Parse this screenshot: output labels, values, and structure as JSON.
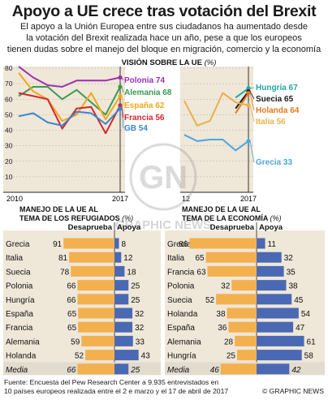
{
  "header": {
    "title": "Apoyo a UE crece tras votación del Brexit",
    "subtitle_lines": [
      "El apoyo a la Unión Europea entre sus ciudadanos ha aumentado desde",
      "la votación del Brexit realizada hace un año, pese a que los europeos",
      "tienen dudas sobre el manejo del bloque en migración, comercio y la economía"
    ]
  },
  "colors": {
    "background": "#ffffff",
    "panel": "#efe7d8",
    "polonia": "#9b30b0",
    "alemania": "#3a9a52",
    "espana": "#f2a61c",
    "francia": "#d1282f",
    "gb": "#3a86d0",
    "hungria": "#1fa8a6",
    "suecia": "#1a1a1a",
    "holanda": "#e07a1e",
    "italia": "#e6b24f",
    "grecia": "#4aa7e0",
    "disapprove_bar": "#f3b04f",
    "approve_bar": "#4a69b4",
    "media_row": "#e2dccf"
  },
  "chart_data": [
    {
      "type": "line",
      "title": "VISIÓN SOBRE LA UE",
      "unit": "(%)",
      "x": [
        2010,
        2011,
        2012,
        2013,
        2014,
        2015,
        2016,
        2017
      ],
      "x_tick_labels": [
        "2010",
        "2017"
      ],
      "ylim": [
        0,
        80
      ],
      "y_ticks": [
        0,
        10,
        20,
        30,
        40,
        50,
        60,
        70,
        80
      ],
      "series": [
        {
          "name": "Polonia",
          "end_value": 74,
          "values": [
            81,
            74,
            69,
            68,
            72,
            72,
            72,
            74
          ],
          "color_key": "polonia"
        },
        {
          "name": "Alemania",
          "end_value": 68,
          "values": [
            62,
            68,
            68,
            60,
            66,
            58,
            50,
            68
          ],
          "color_key": "alemania"
        },
        {
          "name": "España",
          "end_value": 62,
          "values": [
            77,
            65,
            60,
            46,
            50,
            64,
            47,
            62
          ],
          "color_key": "espana"
        },
        {
          "name": "Francia",
          "end_value": 56,
          "values": [
            64,
            62,
            60,
            41,
            54,
            55,
            38,
            56
          ],
          "color_key": "francia"
        },
        {
          "name": "GB",
          "end_value": 54,
          "values": [
            49,
            51,
            45,
            43,
            52,
            51,
            44,
            54
          ],
          "color_key": "gb"
        }
      ]
    },
    {
      "type": "line",
      "x": [
        2012,
        2013,
        2014,
        2015,
        2016,
        2017
      ],
      "x_tick_labels": [
        "12",
        "2017"
      ],
      "ylim": [
        0,
        80
      ],
      "series": [
        {
          "name": "Hungría",
          "end_value": 67,
          "values": [
            null,
            null,
            null,
            null,
            61,
            67
          ],
          "color_key": "hungria"
        },
        {
          "name": "Suecia",
          "end_value": 65,
          "values": [
            null,
            null,
            null,
            null,
            54,
            65
          ],
          "color_key": "suecia"
        },
        {
          "name": "Holanda",
          "end_value": 64,
          "values": [
            null,
            null,
            null,
            null,
            51,
            64
          ],
          "color_key": "holanda"
        },
        {
          "name": "Italia",
          "end_value": 56,
          "values": [
            59,
            43,
            46,
            64,
            58,
            56
          ],
          "color_key": "italia"
        },
        {
          "name": "Grecia",
          "end_value": 33,
          "values": [
            37,
            33,
            34,
            34,
            27,
            33
          ],
          "color_key": "grecia"
        }
      ]
    },
    {
      "type": "bar",
      "title": "MANEJO DE LA UE AL TEMA DE LOS REFUGIADOS",
      "title_lines": [
        "MANEJO DE LA  UE AL",
        "TEMA DE LOS REFUGIADOS"
      ],
      "unit": "(%)",
      "legend": [
        "Desaprueba",
        "Apoya"
      ],
      "categories": [
        "Grecia",
        "Italia",
        "Suecia",
        "Polonia",
        "Hungría",
        "España",
        "Francia",
        "Alemania",
        "Holanda",
        "Media"
      ],
      "series": [
        {
          "name": "Desaprueba",
          "values": [
            91,
            81,
            78,
            66,
            66,
            65,
            65,
            59,
            52,
            66
          ]
        },
        {
          "name": "Apoya",
          "values": [
            8,
            12,
            18,
            25,
            25,
            32,
            32,
            33,
            43,
            25
          ]
        }
      ]
    },
    {
      "type": "bar",
      "title": "MANEJO DE LA UE AL TEMA DE LA ECONOMÍA",
      "title_lines": [
        "MANEJO DE LA  UE AL",
        "TEMA DE LA ECONOMÍA"
      ],
      "unit": "(%)",
      "legend": [
        "Desaprueba",
        "Apoya"
      ],
      "categories": [
        "Grecia",
        "Italia",
        "Francia",
        "Polonia",
        "Suecia",
        "Holanda",
        "España",
        "Alemania",
        "Hungría",
        "Media"
      ],
      "series": [
        {
          "name": "Desaprueba",
          "values": [
            86,
            65,
            63,
            32,
            52,
            38,
            36,
            28,
            25,
            46
          ]
        },
        {
          "name": "Apoya",
          "values": [
            11,
            32,
            35,
            38,
            45,
            54,
            47,
            61,
            58,
            42
          ]
        }
      ]
    }
  ],
  "watermark": "GRAPHIC NEWS",
  "footer": {
    "source_lines": [
      "Fuente: Encuesta del Pew Research Center a 9.935 entrevistados en",
      "10 países europeos realizada entre el 2 e marzo y el 17 de abril de 2017"
    ],
    "brand": "© GRAPHIC NEWS"
  }
}
